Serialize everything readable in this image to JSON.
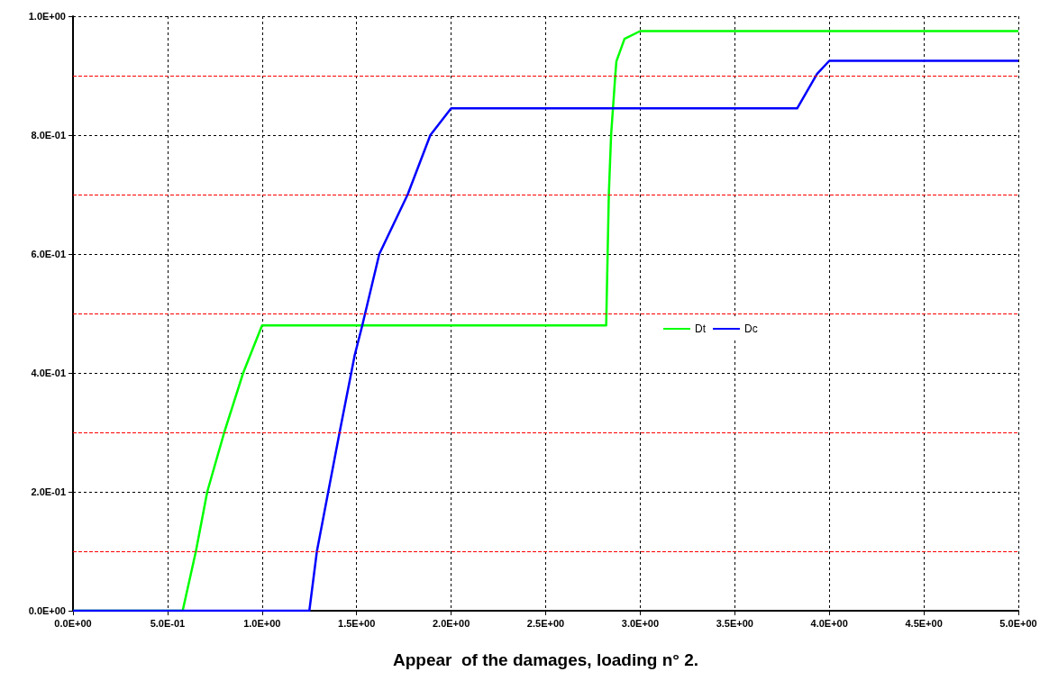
{
  "chart_data": {
    "type": "line",
    "xlabel": "Appear  of the damages, loading n° 2.",
    "xlim": [
      0,
      5
    ],
    "ylim": [
      0,
      1
    ],
    "xticks": [
      {
        "value": 0,
        "label": "0.0E+00"
      },
      {
        "value": 0.5,
        "label": "5.0E-01"
      },
      {
        "value": 1,
        "label": "1.0E+00"
      },
      {
        "value": 1.5,
        "label": "1.5E+00"
      },
      {
        "value": 2,
        "label": "2.0E+00"
      },
      {
        "value": 2.5,
        "label": "2.5E+00"
      },
      {
        "value": 3,
        "label": "3.0E+00"
      },
      {
        "value": 3.5,
        "label": "3.5E+00"
      },
      {
        "value": 4,
        "label": "4.0E+00"
      },
      {
        "value": 4.5,
        "label": "4.5E+00"
      },
      {
        "value": 5,
        "label": "5.0E+00"
      }
    ],
    "yticks": [
      {
        "value": 0,
        "label": "0.0E+00"
      },
      {
        "value": 0.2,
        "label": "2.0E-01"
      },
      {
        "value": 0.4,
        "label": "4.0E-01"
      },
      {
        "value": 0.6,
        "label": "6.0E-01"
      },
      {
        "value": 0.8,
        "label": "8.0E-01"
      },
      {
        "value": 1,
        "label": "1.0E+00"
      }
    ],
    "grid": true,
    "legend": "right",
    "marker": "none",
    "line_style": "solid",
    "ref_lines": [
      {
        "axis": "y",
        "value": 0.1,
        "color": "#ff0000",
        "line_style": "dashed"
      },
      {
        "axis": "y",
        "value": 0.3,
        "color": "#ff0000",
        "line_style": "dashed"
      },
      {
        "axis": "y",
        "value": 0.5,
        "color": "#ff0000",
        "line_style": "dashed"
      },
      {
        "axis": "y",
        "value": 0.7,
        "color": "#ff0000",
        "line_style": "dashed"
      },
      {
        "axis": "y",
        "value": 0.9,
        "color": "#ff0000",
        "line_style": "dashed"
      }
    ],
    "series": [
      {
        "name": "Dt",
        "color": "#00ff00",
        "x": [
          0,
          0.58,
          0.65,
          0.71,
          0.8,
          0.9,
          1.0,
          2.82,
          2.834,
          2.846,
          2.868,
          2.874,
          2.917,
          3.0,
          5
        ],
        "values": [
          0,
          0,
          0.1,
          0.2,
          0.3,
          0.4,
          0.48,
          0.48,
          0.7,
          0.8,
          0.9,
          0.924,
          0.962,
          0.975,
          0.975
        ]
      },
      {
        "name": "Dc",
        "color": "#0000ff",
        "x": [
          0,
          1.25,
          1.29,
          1.35,
          1.41,
          1.49,
          1.53,
          1.62,
          1.77,
          1.89,
          2.0,
          3.83,
          3.935,
          4.0,
          5
        ],
        "values": [
          0,
          0,
          0.1,
          0.2,
          0.3,
          0.43,
          0.48,
          0.6,
          0.7,
          0.8,
          0.845,
          0.845,
          0.903,
          0.925,
          0.925
        ]
      }
    ]
  }
}
